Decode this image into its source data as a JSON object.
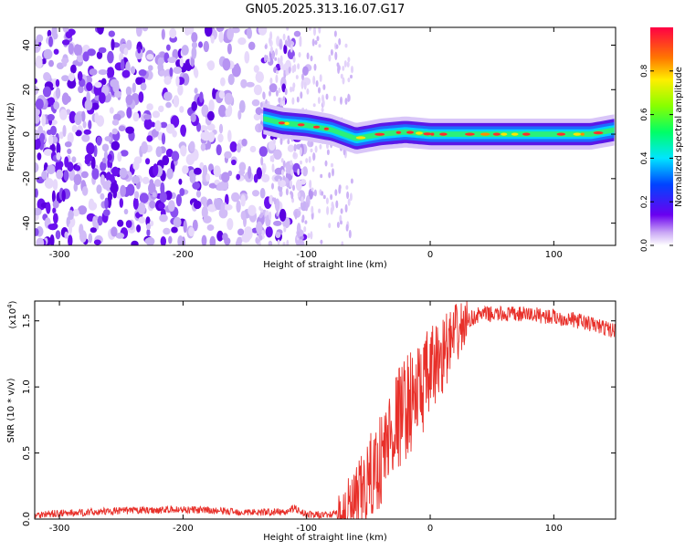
{
  "title": "GN05.2025.313.16.07.G17",
  "chart_data": [
    {
      "type": "heatmap",
      "xlabel": "Height of straight line (km)",
      "ylabel": "Frequency (Hz)",
      "xlim": [
        -320,
        150
      ],
      "ylim": [
        -50,
        48
      ],
      "xticks": [
        "-300",
        "-200",
        "-100",
        "0",
        "100"
      ],
      "yticks": [
        "-40",
        "-20",
        "0",
        "20",
        "40"
      ],
      "colorbar": {
        "label": "Normalized spectral amplitude",
        "range": [
          0,
          1
        ],
        "ticks": [
          "0.0",
          "0.2",
          "0.4",
          "0.6",
          "0.8"
        ]
      },
      "features": {
        "noise_region_x": [
          -320,
          -95
        ],
        "signal_band_frequency_hz": [
          [
            -135,
            7
          ],
          [
            -120,
            5
          ],
          [
            -100,
            4
          ],
          [
            -80,
            2
          ],
          [
            -60,
            -2
          ],
          [
            -40,
            0
          ],
          [
            -20,
            1
          ],
          [
            0,
            0
          ],
          [
            20,
            0
          ],
          [
            50,
            0
          ],
          [
            80,
            0
          ],
          [
            100,
            0
          ],
          [
            130,
            0
          ],
          [
            150,
            2
          ]
        ]
      }
    },
    {
      "type": "line",
      "xlabel": "Height of straight line (km)",
      "ylabel": "SNR (10 * v/v)",
      "multiplier": "(x10^4)",
      "multiplier_base": "(x10",
      "multiplier_exp": "4",
      "xlim": [
        -320,
        150
      ],
      "ylim": [
        0,
        1.65
      ],
      "xticks": [
        "-300",
        "-200",
        "-100",
        "0",
        "100"
      ],
      "yticks": [
        "0.0",
        "0.5",
        "1.0",
        "1.5"
      ],
      "color": "#e8302a",
      "series": [
        {
          "x": [
            -320,
            -300,
            -250,
            -200,
            -150,
            -120,
            -110,
            -100,
            -80,
            -70,
            -60,
            -50,
            -40,
            -30,
            -20,
            -10,
            0,
            10,
            20,
            30,
            40,
            60,
            80,
            100,
            120,
            140,
            150
          ],
          "y": [
            0.03,
            0.04,
            0.06,
            0.07,
            0.05,
            0.05,
            0.08,
            0.03,
            0.03,
            0.05,
            0.12,
            0.28,
            0.45,
            0.7,
            0.85,
            0.95,
            1.1,
            1.25,
            1.38,
            1.5,
            1.55,
            1.55,
            1.55,
            1.53,
            1.5,
            1.45,
            1.42
          ]
        }
      ]
    }
  ]
}
